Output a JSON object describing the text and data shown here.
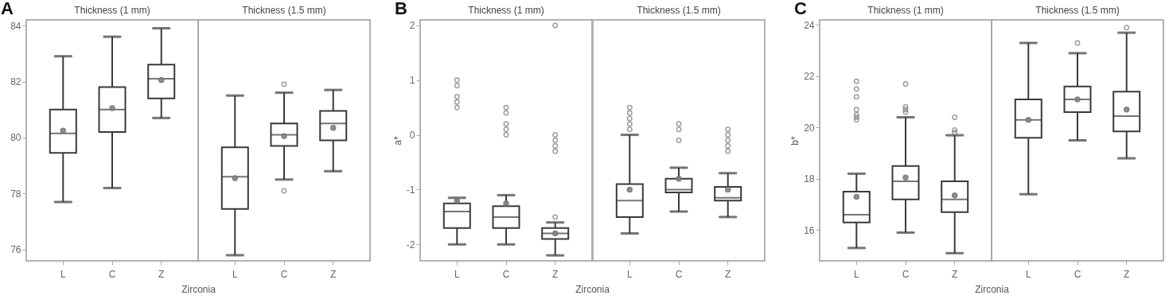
{
  "chart_data": [
    {
      "type": "box",
      "title": "Thickness (1 mm)",
      "xlabel": "Zirconia",
      "annotations": [
        "A"
      ],
      "marker": "circle",
      "categories": [
        "L",
        "C",
        "Z"
      ],
      "ylim": [
        75.6,
        84.2
      ],
      "yticks": [
        76,
        78,
        80,
        82,
        84
      ],
      "boxes": [
        {
          "low": 77.7,
          "q1": 79.45,
          "median": 80.15,
          "q3": 81.0,
          "high": 82.9,
          "mean": 80.25
        },
        {
          "low": 78.2,
          "q1": 80.2,
          "median": 81.0,
          "q3": 81.8,
          "high": 83.6,
          "mean": 81.05
        },
        {
          "low": 80.7,
          "q1": 81.4,
          "median": 82.1,
          "q3": 82.6,
          "high": 83.9,
          "mean": 82.05
        }
      ]
    },
    {
      "type": "box",
      "title": "Thickness (1.5 mm)",
      "marker": "circle",
      "tick_labels": "x",
      "categories": [
        "L",
        "C",
        "Z"
      ],
      "ylim": [
        75.6,
        84.2
      ],
      "boxes": [
        {
          "low": 75.8,
          "q1": 77.45,
          "median": 78.6,
          "q3": 79.65,
          "high": 81.5,
          "mean": 78.55
        },
        {
          "low": 78.5,
          "q1": 79.7,
          "median": 80.1,
          "q3": 80.5,
          "high": 81.6,
          "mean": 80.05,
          "outliers": [
            81.9,
            78.1
          ]
        },
        {
          "low": 78.8,
          "q1": 79.9,
          "median": 80.5,
          "q3": 80.95,
          "high": 81.7,
          "mean": 80.35
        }
      ]
    },
    {
      "type": "box",
      "title": "Thickness (1 mm)",
      "xlabel": "Zirconia",
      "ylabel": "a*",
      "annotations": [
        "B"
      ],
      "marker": "circle",
      "categories": [
        "L",
        "C",
        "Z"
      ],
      "ylim": [
        -2.3,
        2.1
      ],
      "yticks": [
        -2,
        -1,
        0,
        1,
        2
      ],
      "boxes": [
        {
          "low": -2.0,
          "q1": -1.7,
          "median": -1.4,
          "q3": -1.25,
          "high": -1.15,
          "mean": -1.2,
          "outliers": [
            1.0,
            0.9,
            0.7,
            0.6,
            0.5
          ]
        },
        {
          "low": -2.0,
          "q1": -1.7,
          "median": -1.5,
          "q3": -1.3,
          "high": -1.1,
          "mean": -1.25,
          "outliers": [
            0.5,
            0.4,
            0.2,
            0.1,
            0.0
          ]
        },
        {
          "low": -2.2,
          "q1": -1.9,
          "median": -1.8,
          "q3": -1.7,
          "high": -1.6,
          "mean": -1.8,
          "outliers": [
            2.0,
            0.0,
            -0.1,
            -0.2,
            -0.3,
            -1.5
          ]
        }
      ]
    },
    {
      "type": "box",
      "title": "Thickness (1.5 mm)",
      "marker": "circle",
      "tick_labels": "x",
      "categories": [
        "L",
        "C",
        "Z"
      ],
      "ylim": [
        -2.3,
        2.1
      ],
      "boxes": [
        {
          "low": -1.8,
          "q1": -1.5,
          "median": -1.2,
          "q3": -0.9,
          "high": 0.0,
          "mean": -1.0,
          "outliers": [
            0.5,
            0.4,
            0.3,
            0.2,
            0.1
          ]
        },
        {
          "low": -1.4,
          "q1": -1.05,
          "median": -1.0,
          "q3": -0.8,
          "high": -0.6,
          "mean": -0.8,
          "outliers": [
            0.2,
            0.1,
            -0.1
          ]
        },
        {
          "low": -1.5,
          "q1": -1.2,
          "median": -1.15,
          "q3": -0.95,
          "high": -0.7,
          "mean": -1.0,
          "outliers": [
            0.1,
            0.0,
            -0.1,
            -0.2,
            -0.3
          ]
        }
      ]
    },
    {
      "type": "box",
      "title": "Thickness (1 mm)",
      "xlabel": "Zirconia",
      "ylabel": "b*",
      "annotations": [
        "C"
      ],
      "marker": "circle",
      "categories": [
        "L",
        "C",
        "Z"
      ],
      "ylim": [
        14.8,
        24.2
      ],
      "yticks": [
        16,
        18,
        20,
        22,
        24
      ],
      "boxes": [
        {
          "low": 15.3,
          "q1": 16.3,
          "median": 16.6,
          "q3": 17.5,
          "high": 18.2,
          "mean": 17.3,
          "outliers": [
            21.8,
            21.5,
            21.2,
            20.7,
            20.5,
            20.4,
            20.3
          ]
        },
        {
          "low": 15.9,
          "q1": 17.2,
          "median": 17.9,
          "q3": 18.5,
          "high": 20.4,
          "mean": 18.05,
          "outliers": [
            21.7,
            20.8,
            20.7,
            20.6
          ]
        },
        {
          "low": 15.1,
          "q1": 16.7,
          "median": 17.2,
          "q3": 17.9,
          "high": 19.7,
          "mean": 17.35,
          "outliers": [
            20.4,
            19.9,
            19.8
          ]
        }
      ]
    },
    {
      "type": "box",
      "title": "Thickness (1.5 mm)",
      "marker": "circle",
      "tick_labels": "x",
      "categories": [
        "L",
        "C",
        "Z"
      ],
      "ylim": [
        14.8,
        24.2
      ],
      "boxes": [
        {
          "low": 17.4,
          "q1": 19.6,
          "median": 20.3,
          "q3": 21.1,
          "high": 23.3,
          "mean": 20.3
        },
        {
          "low": 19.5,
          "q1": 20.6,
          "median": 21.1,
          "q3": 21.6,
          "high": 22.9,
          "mean": 21.1,
          "outliers": [
            23.3
          ]
        },
        {
          "low": 18.8,
          "q1": 19.85,
          "median": 20.45,
          "q3": 21.4,
          "high": 23.7,
          "mean": 20.7,
          "outliers": [
            23.9
          ]
        }
      ]
    }
  ]
}
